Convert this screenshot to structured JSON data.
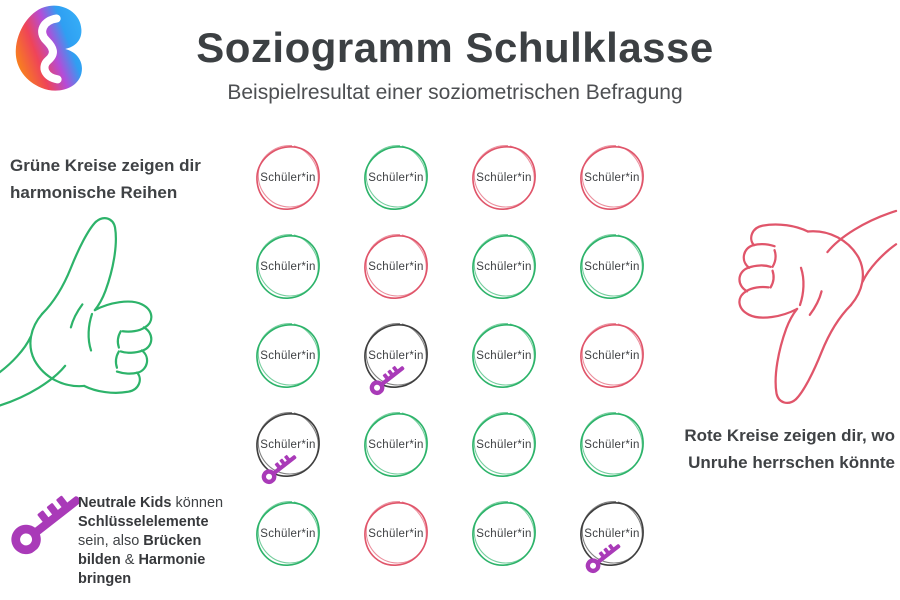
{
  "header": {
    "title": "Soziogramm Schulklasse",
    "subtitle": "Beispielresultat einer soziometrischen Befragung"
  },
  "legend_left": {
    "line1": "Grüne Kreise zeigen dir",
    "line2": "harmonische Reihen"
  },
  "legend_right": {
    "line1": "Rote Kreise zeigen dir, wo",
    "line2": "Unruhe herrschen könnte"
  },
  "note": {
    "segments": [
      {
        "text": "Neutrale Kids",
        "bold": true
      },
      {
        "text": " können ",
        "bold": false
      },
      {
        "text": "Schlüsselelemente",
        "bold": true
      },
      {
        "text": " sein, also ",
        "bold": false
      },
      {
        "text": "Brücken bilden",
        "bold": true
      },
      {
        "text": " & ",
        "bold": false
      },
      {
        "text": "Harmonie bringen",
        "bold": true
      }
    ]
  },
  "grid": {
    "label": "Schüler*in",
    "rows": 5,
    "cols": 4,
    "cells": [
      {
        "type": "red",
        "key": false
      },
      {
        "type": "green",
        "key": false
      },
      {
        "type": "red",
        "key": false
      },
      {
        "type": "red",
        "key": false
      },
      {
        "type": "green",
        "key": false
      },
      {
        "type": "red",
        "key": false
      },
      {
        "type": "green",
        "key": false
      },
      {
        "type": "green",
        "key": false
      },
      {
        "type": "green",
        "key": false
      },
      {
        "type": "neutral",
        "key": true
      },
      {
        "type": "green",
        "key": false
      },
      {
        "type": "red",
        "key": false
      },
      {
        "type": "neutral",
        "key": true
      },
      {
        "type": "green",
        "key": false
      },
      {
        "type": "green",
        "key": false
      },
      {
        "type": "green",
        "key": false
      },
      {
        "type": "green",
        "key": false
      },
      {
        "type": "red",
        "key": false
      },
      {
        "type": "green",
        "key": false
      },
      {
        "type": "neutral",
        "key": true
      }
    ]
  },
  "colors": {
    "green": "#2db36a",
    "red": "#e0556a",
    "neutral": "#3f3f3f",
    "purple": "#a93ab8",
    "title": "#3c4043"
  },
  "icons": {
    "logo": "brand-logo",
    "thumbs_up": "thumbs-up",
    "thumbs_down": "thumbs-down",
    "key": "key"
  }
}
